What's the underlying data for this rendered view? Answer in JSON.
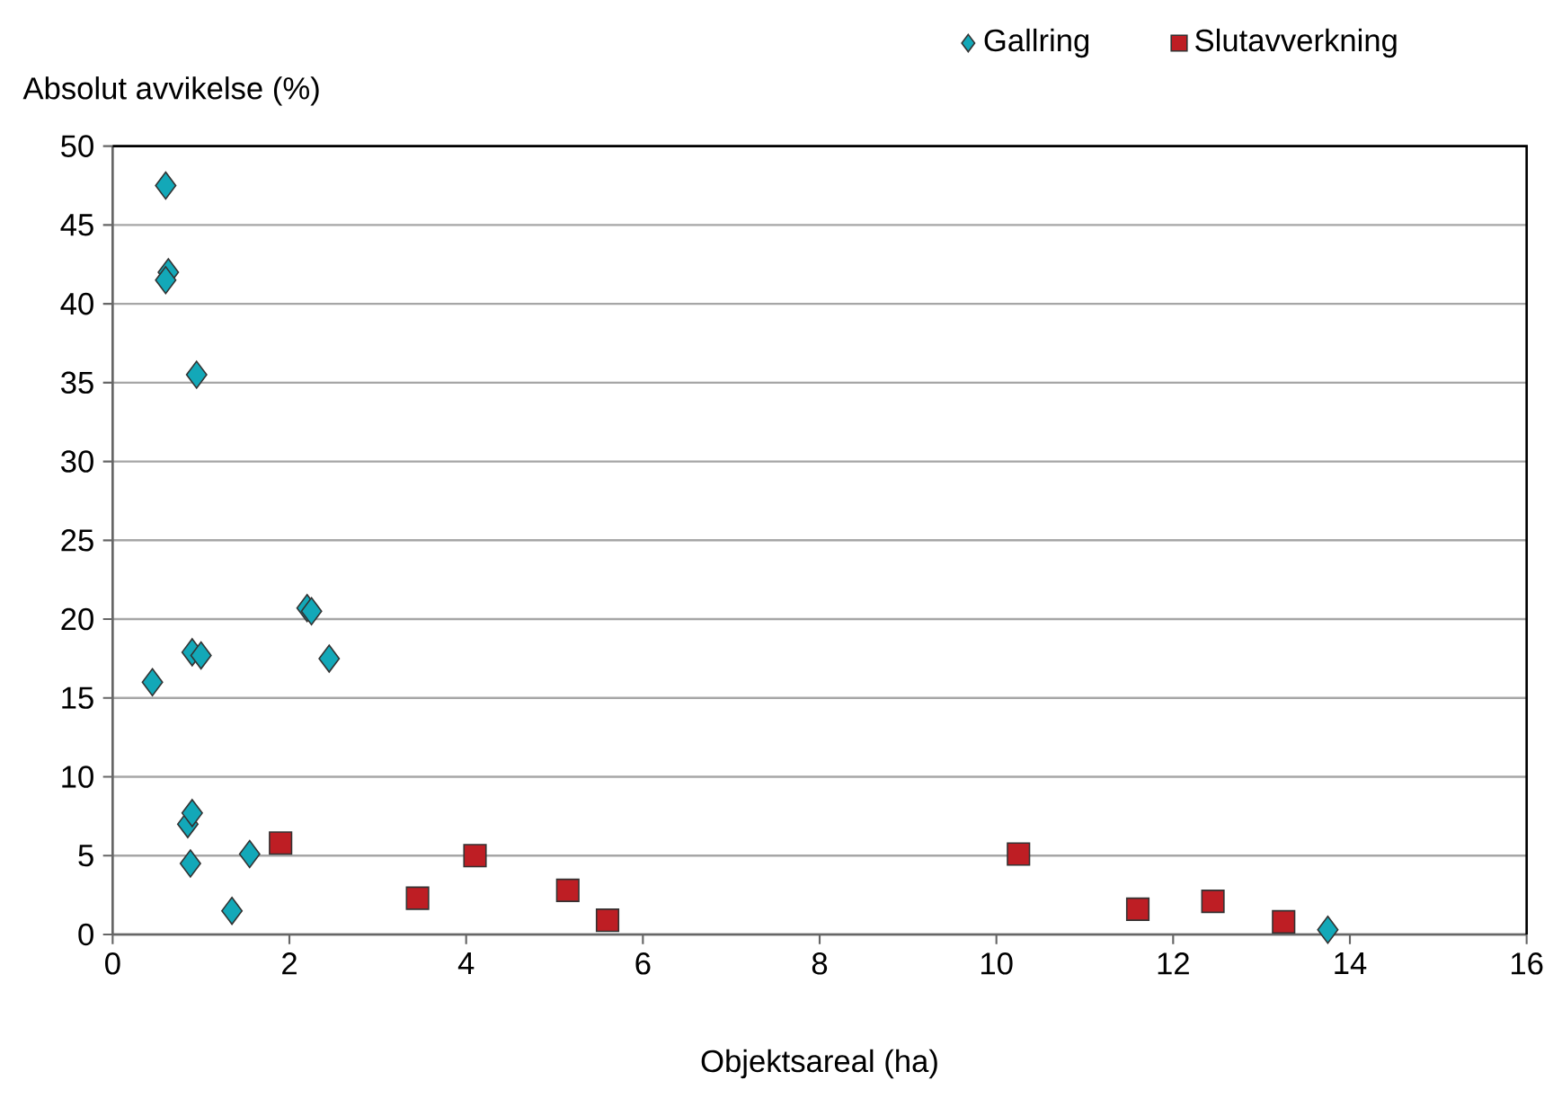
{
  "chart_data": {
    "type": "scatter",
    "xlabel": "Objektsareal (ha)",
    "ylabel": "Absolut avvikelse (%)",
    "series": [
      {
        "name": "Gallring",
        "color": "#13a8b8",
        "marker": "diamond",
        "x": [
          0.6,
          0.63,
          0.6,
          0.95,
          0.45,
          0.9,
          1.0,
          2.2,
          2.25,
          2.45,
          0.85,
          0.9,
          0.88,
          1.55,
          1.35,
          13.75
        ],
        "values": [
          47.5,
          42,
          41.5,
          35.5,
          16,
          17.9,
          17.7,
          20.7,
          20.5,
          17.5,
          7,
          7.7,
          4.5,
          5.1,
          1.5,
          0.3
        ]
      },
      {
        "name": "Slutavverkning",
        "color": "#be1e24",
        "marker": "square",
        "x": [
          1.9,
          3.45,
          4.1,
          5.15,
          5.6,
          10.25,
          11.6,
          12.45,
          13.25
        ],
        "values": [
          5.8,
          2.3,
          5.0,
          2.8,
          0.9,
          5.1,
          1.6,
          2.1,
          0.8
        ]
      }
    ],
    "xlim": [
      0,
      16
    ],
    "xticks": [
      0,
      2,
      4,
      6,
      8,
      10,
      12,
      14,
      16
    ],
    "ylim": [
      0,
      50
    ],
    "yticks": [
      0,
      5,
      10,
      15,
      20,
      25,
      30,
      35,
      40,
      45,
      50
    ],
    "grid": "y",
    "legend": "top right"
  }
}
